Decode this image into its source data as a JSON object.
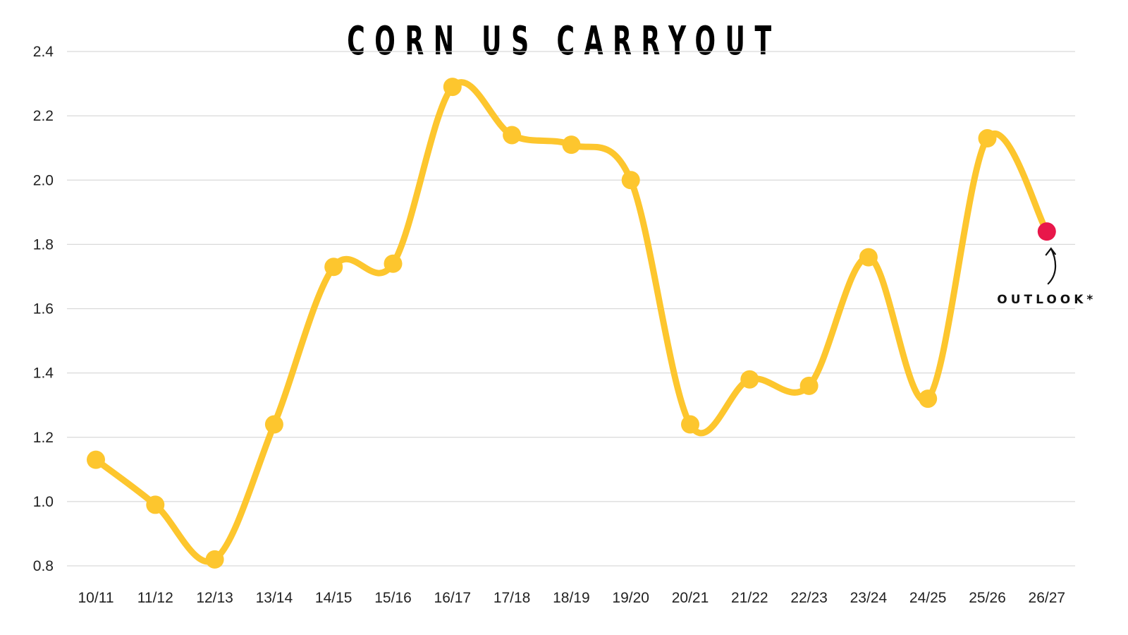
{
  "chart_data": {
    "type": "line",
    "title": "CORN US CARRYOUT",
    "xlabel": "",
    "ylabel": "",
    "categories": [
      "10/11",
      "11/12",
      "12/13",
      "13/14",
      "14/15",
      "15/16",
      "16/17",
      "17/18",
      "18/19",
      "19/20",
      "20/21",
      "21/22",
      "22/23",
      "23/24",
      "24/25",
      "25/26",
      "26/27"
    ],
    "series": [
      {
        "values": [
          1.13,
          0.99,
          0.82,
          1.24,
          1.73,
          1.74,
          2.29,
          2.14,
          2.11,
          2.0,
          1.24,
          1.38,
          1.36,
          1.76,
          1.32,
          2.13,
          1.84
        ]
      }
    ],
    "ylim": [
      0.8,
      2.4
    ],
    "yticks": [
      0.8,
      1.0,
      1.2,
      1.4,
      1.6,
      1.8,
      2.0,
      2.2,
      2.4
    ],
    "grid": true,
    "legend": "none",
    "colors": {
      "line": "#FDC62E",
      "highlight": "#E8174A",
      "grid": "#D9D9D9"
    },
    "annotation": {
      "text": "OUTLOOK*",
      "category": "26/27"
    }
  }
}
